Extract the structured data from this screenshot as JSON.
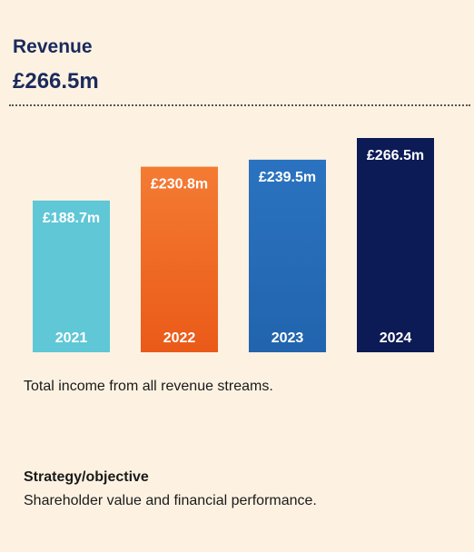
{
  "header": {
    "title": "Revenue",
    "headline_value": "£266.5m"
  },
  "chart_data": {
    "type": "bar",
    "categories": [
      "2021",
      "2022",
      "2023",
      "2024"
    ],
    "values": [
      188.7,
      230.8,
      239.5,
      266.5
    ],
    "value_labels": [
      "£188.7m",
      "£230.8m",
      "£239.5m",
      "£266.5m"
    ],
    "colors": [
      "#5fc7d6",
      "#ea5a18",
      "#2264ae",
      "#0c1a55"
    ],
    "gradient_top_colors": [
      "#5fc7d6",
      "#f47b33",
      "#2a73c0",
      "#0c1a55"
    ],
    "category_label_position": "inside-bottom",
    "value_label_position": "inside-top",
    "axes_visible": false,
    "grid": false,
    "title": "",
    "xlabel": "",
    "ylabel": ""
  },
  "caption": "Total income from all revenue streams.",
  "strategy": {
    "heading": "Strategy/objective",
    "text": "Shareholder value and financial performance."
  }
}
